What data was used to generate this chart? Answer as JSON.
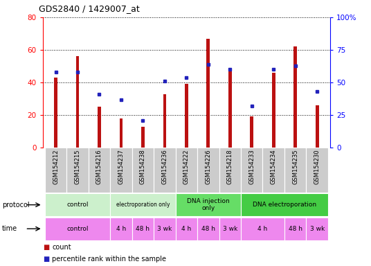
{
  "title": "GDS2840 / 1429007_at",
  "samples": [
    "GSM154212",
    "GSM154215",
    "GSM154216",
    "GSM154237",
    "GSM154238",
    "GSM154236",
    "GSM154222",
    "GSM154226",
    "GSM154218",
    "GSM154233",
    "GSM154234",
    "GSM154235",
    "GSM154230"
  ],
  "counts": [
    43,
    56,
    25,
    18,
    13,
    33,
    39,
    67,
    49,
    19,
    46,
    62,
    26
  ],
  "percentiles": [
    58,
    58,
    41,
    37,
    21,
    51,
    54,
    64,
    60,
    32,
    60,
    63,
    43
  ],
  "ylim_left": [
    0,
    80
  ],
  "ylim_right": [
    0,
    100
  ],
  "yticks_left": [
    0,
    20,
    40,
    60,
    80
  ],
  "yticks_right": [
    0,
    25,
    50,
    75,
    100
  ],
  "ytick_labels_right": [
    "0",
    "25",
    "50",
    "75",
    "100%"
  ],
  "bar_color": "#bb1111",
  "dot_color": "#2222bb",
  "bar_width": 0.15,
  "proto_groups": [
    {
      "label": "control",
      "start": 0,
      "end": 3,
      "color": "#ccf0cc"
    },
    {
      "label": "electroporation only",
      "start": 3,
      "end": 6,
      "color": "#ccf0cc"
    },
    {
      "label": "DNA injection\nonly",
      "start": 6,
      "end": 9,
      "color": "#66dd66"
    },
    {
      "label": "DNA electroporation",
      "start": 9,
      "end": 13,
      "color": "#44cc44"
    }
  ],
  "time_groups": [
    {
      "label": "control",
      "start": 0,
      "end": 3
    },
    {
      "label": "4 h",
      "start": 3,
      "end": 4
    },
    {
      "label": "48 h",
      "start": 4,
      "end": 5
    },
    {
      "label": "3 wk",
      "start": 5,
      "end": 6
    },
    {
      "label": "4 h",
      "start": 6,
      "end": 7
    },
    {
      "label": "48 h",
      "start": 7,
      "end": 8
    },
    {
      "label": "3 wk",
      "start": 8,
      "end": 9
    },
    {
      "label": "4 h",
      "start": 9,
      "end": 11
    },
    {
      "label": "48 h",
      "start": 11,
      "end": 12
    },
    {
      "label": "3 wk",
      "start": 12,
      "end": 13
    }
  ],
  "time_color": "#ee88ee",
  "label_bg": "#cccccc",
  "legend_count_label": "count",
  "legend_percentile_label": "percentile rank within the sample",
  "bg_color": "#ffffff"
}
